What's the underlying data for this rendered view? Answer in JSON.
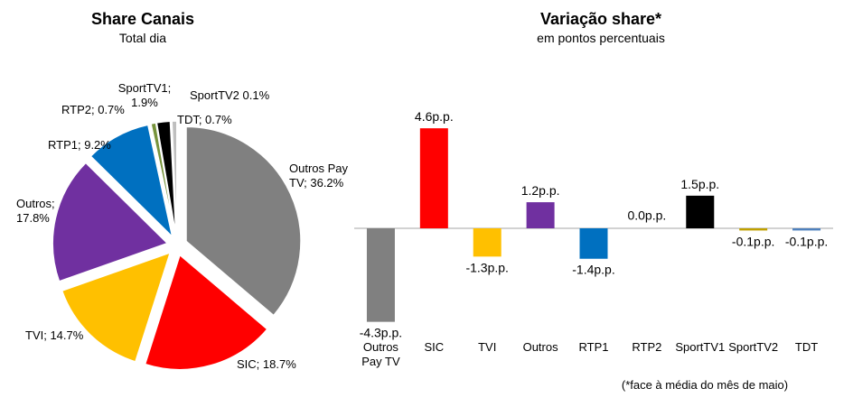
{
  "pie": {
    "title": "Share Canais",
    "subtitle": "Total dia"
  },
  "bars": {
    "title": "Variação share*",
    "subtitle": "em pontos percentuais",
    "footnote": "(*face à média do mês de maio)"
  },
  "chart_data": [
    {
      "type": "pie",
      "title": "Share Canais",
      "subtitle": "Total dia",
      "slices": [
        {
          "label": "Outros Pay TV",
          "value": 36.2,
          "value_label": "36.2%",
          "color": "#808080",
          "text": [
            "Outros Pay",
            "TV; 36.2%"
          ]
        },
        {
          "label": "SIC",
          "value": 18.7,
          "value_label": "18.7%",
          "color": "#ff0000",
          "text": [
            "SIC; 18.7%"
          ]
        },
        {
          "label": "TVI",
          "value": 14.7,
          "value_label": "14.7%",
          "color": "#ffc000",
          "text": [
            "TVI; 14.7%"
          ]
        },
        {
          "label": "Outros",
          "value": 17.8,
          "value_label": "17.8%",
          "color": "#7030a0",
          "text": [
            "Outros;",
            "17.8%"
          ]
        },
        {
          "label": "RTP1",
          "value": 9.2,
          "value_label": "9.2%",
          "color": "#0070c0",
          "text": [
            "RTP1; 9.2%"
          ]
        },
        {
          "label": "RTP2",
          "value": 0.7,
          "value_label": "0.7%",
          "color": "#77933c",
          "text": [
            "RTP2; 0.7%"
          ]
        },
        {
          "label": "SportTV1",
          "value": 1.9,
          "value_label": "1.9%",
          "color": "#000000",
          "text": [
            "SportTV1;",
            "1.9%"
          ]
        },
        {
          "label": "SportTV2",
          "value": 0.1,
          "value_label": "0.1%",
          "color": "#4f81bd",
          "text": [
            "SportTV2 0.1%"
          ]
        },
        {
          "label": "TDT",
          "value": 0.7,
          "value_label": "0.7%",
          "color": "#bfbfbf",
          "text": [
            "TDT; 0.7%"
          ]
        }
      ]
    },
    {
      "type": "bar",
      "title": "Variação share*",
      "subtitle": "em pontos percentuais",
      "unit": "p.p.",
      "ylim": [
        -4.6,
        4.9
      ],
      "categories": [
        "Outros Pay TV",
        "SIC",
        "TVI",
        "Outros",
        "RTP1",
        "RTP2",
        "SportTV1",
        "SportTV2",
        "TDT"
      ],
      "category_lines": [
        [
          "Outros",
          "Pay TV"
        ],
        [
          "SIC"
        ],
        [
          "TVI"
        ],
        [
          "Outros"
        ],
        [
          "RTP1"
        ],
        [
          "RTP2"
        ],
        [
          "SportTV1"
        ],
        [
          "SportTV2"
        ],
        [
          "TDT"
        ]
      ],
      "values": [
        -4.3,
        4.6,
        -1.3,
        1.2,
        -1.4,
        0.0,
        1.5,
        -0.1,
        -0.1
      ],
      "value_labels": [
        "-4.3p.p.",
        "4.6p.p.",
        "-1.3p.p.",
        "1.2p.p.",
        "-1.4p.p.",
        "0.0p.p.",
        "1.5p.p.",
        "-0.1p.p.",
        "-0.1p.p."
      ],
      "colors": [
        "#808080",
        "#ff0000",
        "#ffc000",
        "#7030a0",
        "#0070c0",
        "#77933c",
        "#000000",
        "#c0a000",
        "#4f81bd"
      ],
      "grid": false,
      "legend": "none"
    }
  ]
}
